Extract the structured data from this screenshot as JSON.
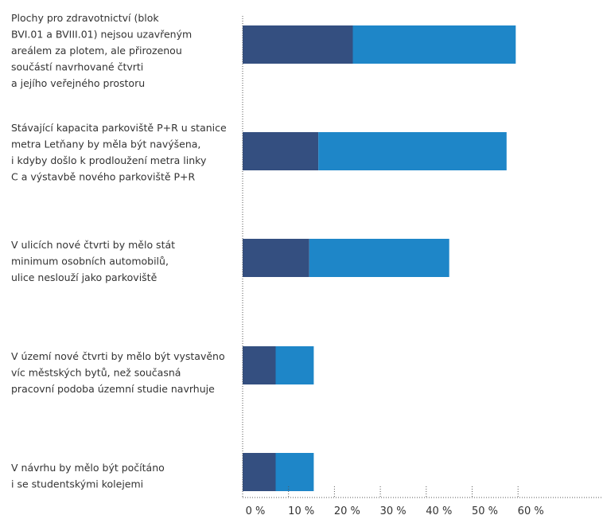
{
  "chart_data": {
    "type": "bar",
    "orientation": "horizontal",
    "stacked": true,
    "categories": [
      [
        "Plochy pro zdravotnictví (blok",
        "BVI.01 a BVIII.01) nejsou uzavřeným",
        "areálem za plotem, ale přirozenou",
        "součástí navrhované čtvrti",
        "a jejího veřejného prostoru"
      ],
      [
        "Stávající kapacita parkoviště P+R u stanice",
        "metra Letňany by měla být navýšena,",
        "i kdyby došlo k prodloužení metra linky",
        "C a výstavbě nového parkoviště P+R"
      ],
      [
        "V ulicích nové čtvrti by mělo stát",
        "minimum osobních automobilů,",
        "ulice neslouží jako parkoviště"
      ],
      [
        "V území nové čtvrti by mělo být vystavěno",
        "víc městských bytů, než současná",
        "pracovní podoba územní studie navrhuje"
      ],
      [
        "V návrhu by mělo být počítáno",
        "i se studentskými kolejemi"
      ]
    ],
    "series": [
      {
        "color": "#344f80",
        "values": [
          24,
          16.5,
          14.5,
          7.2,
          7.2
        ]
      },
      {
        "color": "#1e86c8",
        "values": [
          35.5,
          41,
          30.5,
          8.3,
          8.3
        ]
      }
    ],
    "x_ticks": [
      "0 %",
      "10 %",
      "20 %",
      "30 %",
      "40 %",
      "50 %",
      "60 %"
    ],
    "xlim": [
      0,
      78.5
    ],
    "grid": false
  }
}
